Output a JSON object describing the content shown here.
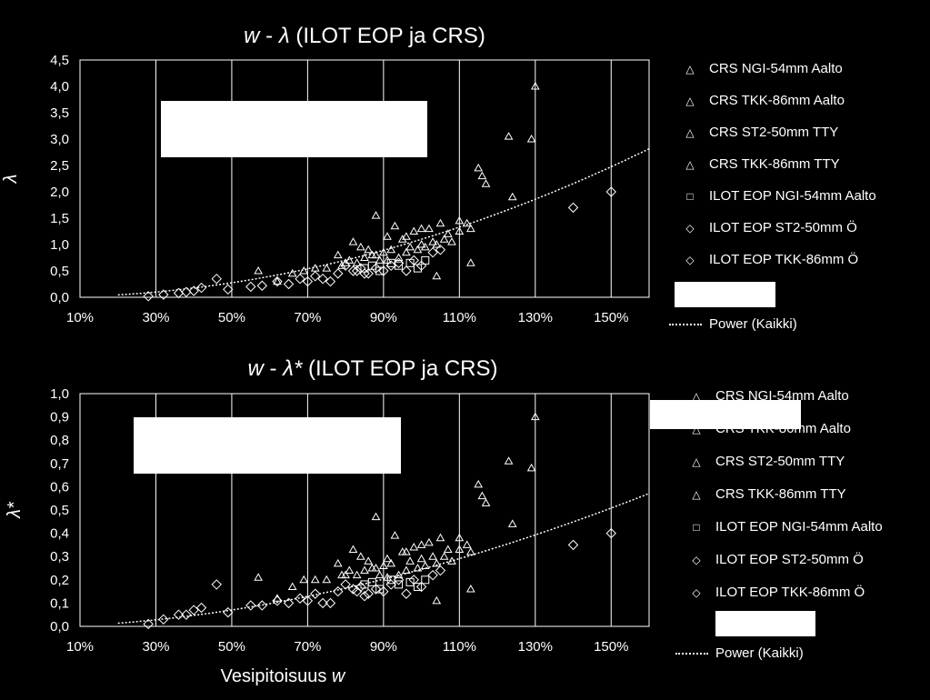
{
  "chart_data": [
    {
      "type": "scatter",
      "title_var": "w",
      "title_sep": " - ",
      "title_greek": "λ",
      "title_rest": " (ILOT EOP ja CRS)",
      "ylabel": "λ",
      "xlabel": "",
      "xlim": [
        0.1,
        1.6
      ],
      "ylim": [
        0,
        4.5
      ],
      "x_ticks": [
        "10%",
        "30%",
        "50%",
        "70%",
        "90%",
        "110%",
        "130%",
        "150%"
      ],
      "y_ticks": [
        "0,0",
        "0,5",
        "1,0",
        "1,5",
        "2,0",
        "2,5",
        "3,0",
        "3,5",
        "4,0",
        "4,5"
      ],
      "grid": true,
      "legend_position": "right",
      "series": [
        {
          "name": "CRS NGI-54mm Aalto",
          "marker": "triangle",
          "x": [
            0.88,
            0.91,
            0.93,
            0.96,
            0.98,
            1.0,
            1.02,
            1.05,
            1.07,
            1.1,
            1.12
          ],
          "y": [
            1.55,
            1.15,
            1.35,
            1.15,
            1.25,
            1.3,
            1.3,
            1.4,
            1.2,
            1.45,
            1.4
          ]
        },
        {
          "name": "CRS TKK-86mm Aalto",
          "marker": "triangle",
          "x": [
            1.15,
            1.16,
            1.17,
            1.23,
            1.24,
            1.29,
            1.3,
            1.13,
            1.04
          ],
          "y": [
            2.45,
            2.3,
            2.15,
            3.05,
            1.9,
            3.0,
            4.0,
            0.65,
            0.4
          ]
        },
        {
          "name": "CRS ST2-50mm TTY",
          "marker": "triangle",
          "x": [
            0.57,
            0.62,
            0.66,
            0.69,
            0.72,
            0.75,
            0.78,
            0.8,
            0.82,
            0.84,
            0.86,
            0.88,
            0.9,
            0.92,
            0.95,
            0.97,
            1.0,
            1.03,
            1.06,
            1.1
          ],
          "y": [
            0.5,
            0.3,
            0.45,
            0.5,
            0.55,
            0.55,
            0.8,
            0.65,
            1.05,
            0.95,
            0.9,
            0.8,
            0.85,
            0.9,
            1.1,
            0.95,
            1.0,
            1.05,
            1.1,
            1.25
          ]
        },
        {
          "name": "CRS TKK-86mm TTY",
          "marker": "triangle",
          "x": [
            0.79,
            0.81,
            0.83,
            0.85,
            0.87,
            0.89,
            0.91,
            0.94,
            0.96,
            0.99,
            1.01,
            1.04,
            1.08,
            1.13
          ],
          "y": [
            0.6,
            0.7,
            0.65,
            0.75,
            0.8,
            0.7,
            0.7,
            0.75,
            0.85,
            0.9,
            0.95,
            1.0,
            1.05,
            1.3
          ]
        },
        {
          "name": "ILOT EOP NGI-54mm Aalto",
          "marker": "square",
          "x": [
            0.85,
            0.87,
            0.89,
            0.92,
            0.94,
            0.97,
            0.99,
            1.01
          ],
          "y": [
            0.55,
            0.6,
            0.5,
            0.65,
            0.6,
            0.65,
            0.55,
            0.7
          ]
        },
        {
          "name": "ILOT EOP ST2-50mm Ö",
          "marker": "diamond",
          "x": [
            0.28,
            0.32,
            0.36,
            0.38,
            0.4,
            0.42,
            0.46,
            0.49,
            0.55,
            0.58,
            0.62,
            0.65,
            0.68,
            0.7,
            0.72,
            0.76,
            0.78,
            0.82,
            0.84,
            0.86,
            1.4,
            1.5
          ],
          "y": [
            0.02,
            0.05,
            0.08,
            0.1,
            0.12,
            0.18,
            0.35,
            0.15,
            0.2,
            0.22,
            0.3,
            0.25,
            0.35,
            0.3,
            0.4,
            0.3,
            0.45,
            0.5,
            0.55,
            0.45,
            1.7,
            2.0
          ]
        },
        {
          "name": "ILOT EOP TKK-86mm Ö",
          "marker": "diamond",
          "x": [
            0.74,
            0.8,
            0.83,
            0.85,
            0.88,
            0.9,
            0.92,
            0.94,
            0.96,
            0.98,
            1.0,
            1.03,
            1.05
          ],
          "y": [
            0.35,
            0.6,
            0.5,
            0.45,
            0.55,
            0.5,
            0.6,
            0.65,
            0.5,
            0.7,
            0.6,
            0.85,
            0.9
          ]
        }
      ],
      "trendline": {
        "name": "Power (Kaikki)",
        "a": 1.1,
        "b": 2.0
      }
    },
    {
      "type": "scatter",
      "title_var": "w",
      "title_sep": " - ",
      "title_greek": "λ*",
      "title_rest": " (ILOT EOP ja CRS)",
      "ylabel": "λ*",
      "xlabel_text": "Vesipitoisuus ",
      "xlabel_var": "w",
      "xlim": [
        0.1,
        1.6
      ],
      "ylim": [
        0,
        1.0
      ],
      "x_ticks": [
        "10%",
        "30%",
        "50%",
        "70%",
        "90%",
        "110%",
        "130%",
        "150%"
      ],
      "y_ticks": [
        "0,0",
        "0,1",
        "0,2",
        "0,3",
        "0,4",
        "0,5",
        "0,6",
        "0,7",
        "0,8",
        "0,9",
        "1,0"
      ],
      "grid": true,
      "legend_position": "right",
      "series": [
        {
          "name": "CRS NGI-54mm Aalto",
          "marker": "triangle",
          "x": [
            0.88,
            0.91,
            0.93,
            0.96,
            0.98,
            1.0,
            1.02,
            1.05,
            1.07,
            1.1,
            1.12
          ],
          "y": [
            0.47,
            0.29,
            0.39,
            0.32,
            0.34,
            0.35,
            0.36,
            0.38,
            0.33,
            0.38,
            0.35
          ]
        },
        {
          "name": "CRS TKK-86mm Aalto",
          "marker": "triangle",
          "x": [
            1.15,
            1.16,
            1.17,
            1.23,
            1.24,
            1.29,
            1.3,
            1.13,
            1.04
          ],
          "y": [
            0.61,
            0.56,
            0.53,
            0.71,
            0.44,
            0.68,
            0.9,
            0.16,
            0.11
          ]
        },
        {
          "name": "CRS ST2-50mm TTY",
          "marker": "triangle",
          "x": [
            0.57,
            0.62,
            0.66,
            0.69,
            0.72,
            0.75,
            0.78,
            0.8,
            0.82,
            0.84,
            0.86,
            0.88,
            0.9,
            0.92,
            0.95,
            0.97,
            1.0,
            1.03,
            1.06,
            1.1
          ],
          "y": [
            0.21,
            0.12,
            0.17,
            0.2,
            0.2,
            0.2,
            0.27,
            0.22,
            0.33,
            0.3,
            0.28,
            0.25,
            0.26,
            0.27,
            0.32,
            0.28,
            0.29,
            0.3,
            0.3,
            0.33
          ]
        },
        {
          "name": "CRS TKK-86mm TTY",
          "marker": "triangle",
          "x": [
            0.79,
            0.81,
            0.83,
            0.85,
            0.87,
            0.89,
            0.91,
            0.94,
            0.96,
            0.99,
            1.01,
            1.04,
            1.08,
            1.13
          ],
          "y": [
            0.22,
            0.24,
            0.22,
            0.24,
            0.25,
            0.22,
            0.21,
            0.22,
            0.24,
            0.25,
            0.26,
            0.27,
            0.28,
            0.32
          ]
        },
        {
          "name": "ILOT EOP NGI-54mm Aalto",
          "marker": "square",
          "x": [
            0.85,
            0.87,
            0.89,
            0.92,
            0.94,
            0.97,
            0.99,
            1.01
          ],
          "y": [
            0.18,
            0.19,
            0.16,
            0.2,
            0.18,
            0.19,
            0.17,
            0.2
          ]
        },
        {
          "name": "ILOT EOP ST2-50mm Ö",
          "marker": "diamond",
          "x": [
            0.28,
            0.32,
            0.36,
            0.38,
            0.4,
            0.42,
            0.46,
            0.49,
            0.55,
            0.58,
            0.62,
            0.65,
            0.68,
            0.7,
            0.72,
            0.76,
            0.78,
            0.82,
            0.84,
            0.86,
            1.4,
            1.5
          ],
          "y": [
            0.01,
            0.03,
            0.05,
            0.05,
            0.07,
            0.08,
            0.18,
            0.06,
            0.09,
            0.09,
            0.11,
            0.1,
            0.12,
            0.11,
            0.14,
            0.1,
            0.15,
            0.16,
            0.17,
            0.14,
            0.35,
            0.4
          ]
        },
        {
          "name": "ILOT EOP TKK-86mm Ö",
          "marker": "diamond",
          "x": [
            0.74,
            0.8,
            0.83,
            0.85,
            0.88,
            0.9,
            0.92,
            0.94,
            0.96,
            0.98,
            1.0,
            1.03,
            1.05
          ],
          "y": [
            0.1,
            0.18,
            0.15,
            0.13,
            0.16,
            0.15,
            0.18,
            0.2,
            0.14,
            0.2,
            0.17,
            0.22,
            0.24
          ]
        }
      ],
      "trendline": {
        "name": "Power (Kaikki)",
        "a": 0.245,
        "b": 1.8
      }
    }
  ],
  "colors": {
    "background": "#000000",
    "foreground": "#ffffff",
    "grid": "#ffffff"
  }
}
